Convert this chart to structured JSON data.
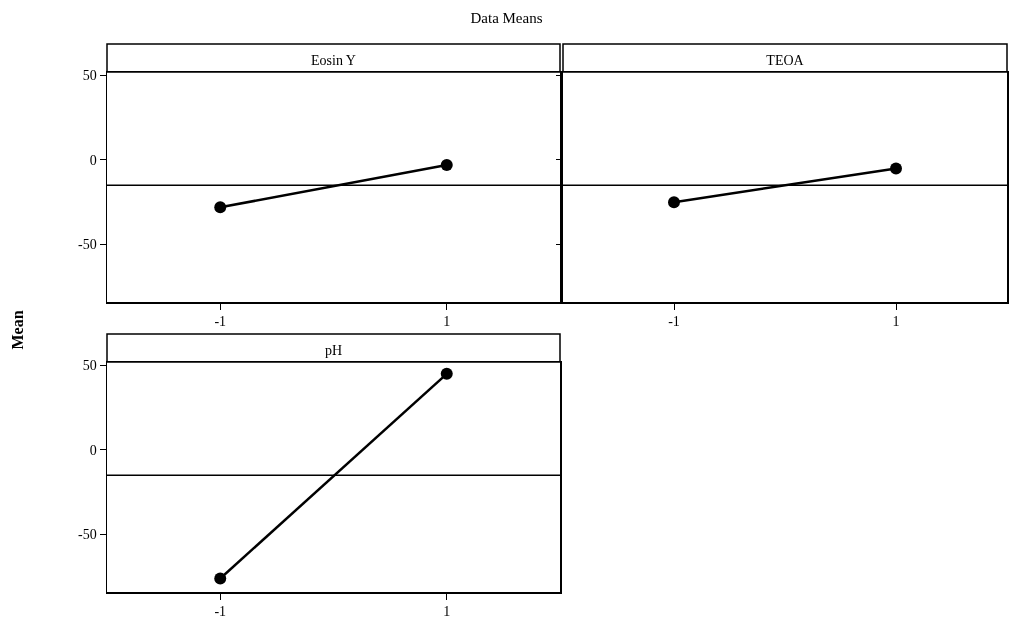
{
  "chart_data": [
    {
      "type": "line",
      "title": "Eosin Y",
      "annotations": [
        "Data Means"
      ],
      "ylabel": "Mean",
      "categories": [
        "-1",
        "1"
      ],
      "values": [
        -28,
        -3
      ],
      "color": "#000000",
      "marker": "circle",
      "ylim": [
        -84,
        52
      ],
      "yticks": [
        -50,
        0,
        50
      ],
      "grid": false,
      "ref_lines": [
        {
          "axis": "y",
          "value": -15,
          "color": "#000000"
        }
      ]
    },
    {
      "type": "line",
      "title": "TEOA",
      "categories": [
        "-1",
        "1"
      ],
      "values": [
        -25,
        -5
      ],
      "color": "#000000",
      "marker": "circle",
      "ylim": [
        -84,
        52
      ],
      "yticks": [
        -50,
        0,
        50
      ],
      "grid": false,
      "tick_labels": "x",
      "ref_lines": [
        {
          "axis": "y",
          "value": -15,
          "color": "#000000"
        }
      ]
    },
    {
      "type": "line",
      "title": "pH",
      "categories": [
        "-1",
        "1"
      ],
      "values": [
        -76,
        45
      ],
      "color": "#000000",
      "marker": "circle",
      "ylim": [
        -84,
        52
      ],
      "yticks": [
        -50,
        0,
        50
      ],
      "grid": false,
      "ref_lines": [
        {
          "axis": "y",
          "value": -15,
          "color": "#000000"
        }
      ]
    }
  ]
}
